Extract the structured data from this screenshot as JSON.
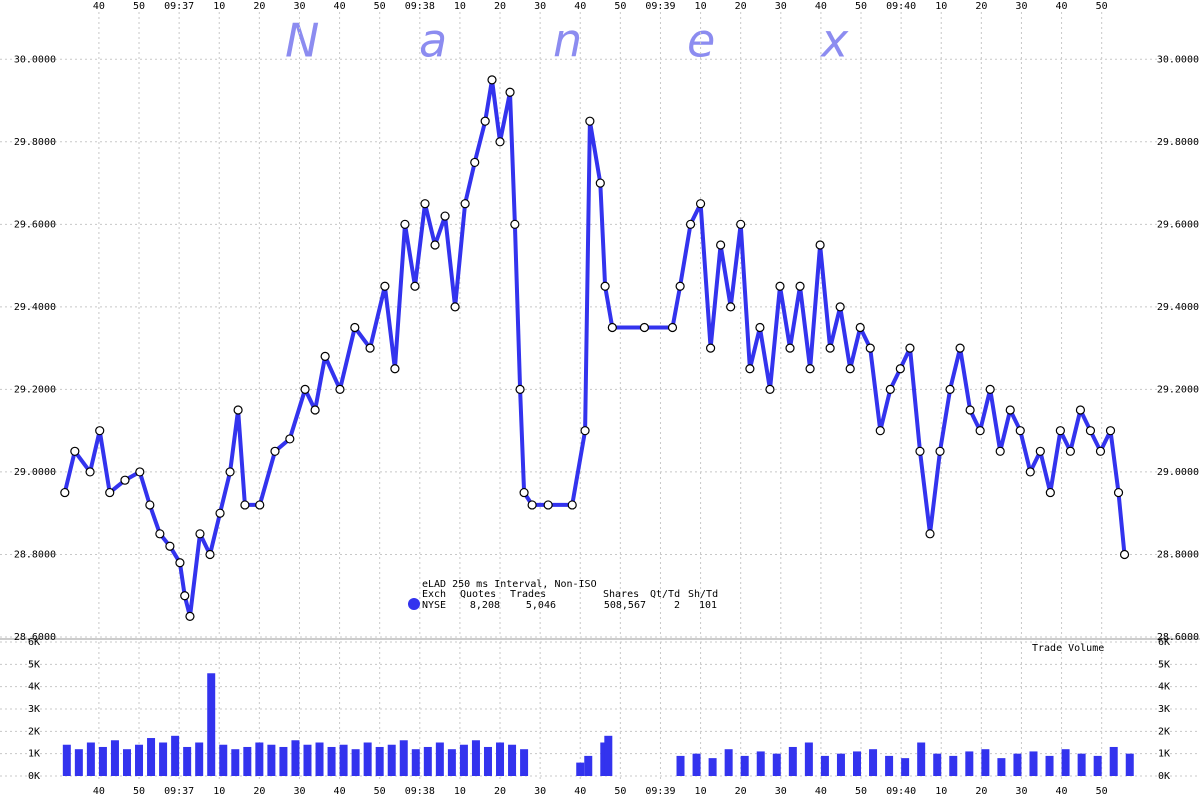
{
  "watermark": [
    "N",
    "a",
    "n",
    "e",
    "x"
  ],
  "chart_data": [
    {
      "type": "line",
      "legend_title": "eLAD 250 ms Interval, Non-ISO",
      "legend_columns": [
        "Exch",
        "Quotes",
        "Trades",
        "Shares",
        "Qt/Td",
        "Sh/Td"
      ],
      "legend_stats": [
        {
          "value": 8208,
          "label": "8,208"
        },
        {
          "value": 5046,
          "label": "5,046"
        },
        {
          "value": 508567,
          "label": "508,567"
        },
        2,
        101
      ],
      "x": [
        31.5,
        34.0,
        37.8,
        40.2,
        42.7,
        46.5,
        50.2,
        52.7,
        55.2,
        57.7,
        60.2,
        61.4,
        62.7,
        65.2,
        67.7,
        70.2,
        72.7,
        74.7,
        76.4,
        80.1,
        83.9,
        87.6,
        91.4,
        93.9,
        96.4,
        100.1,
        103.8,
        107.6,
        111.3,
        113.8,
        116.3,
        118.8,
        121.3,
        123.8,
        126.3,
        128.8,
        131.3,
        133.7,
        136.3,
        138.0,
        140.0,
        142.5,
        143.7,
        145.0,
        146.0,
        148.0,
        152.0,
        158.0,
        161.2,
        162.4,
        165.0,
        166.2,
        168.0,
        176.0,
        183.0,
        184.9,
        187.5,
        190.0,
        192.5,
        195.0,
        197.5,
        200.0,
        202.3,
        204.8,
        207.3,
        209.8,
        212.3,
        214.8,
        217.3,
        219.8,
        222.3,
        224.8,
        227.3,
        229.8,
        232.3,
        234.8,
        237.3,
        239.8,
        242.2,
        244.7,
        247.2,
        249.7,
        252.2,
        254.7,
        257.2,
        259.7,
        262.2,
        264.7,
        267.2,
        269.7,
        272.2,
        274.7,
        277.2,
        279.7,
        282.2,
        284.7,
        287.2,
        289.7,
        292.2,
        294.2,
        295.7
      ],
      "series": [
        {
          "name": "NYSE",
          "color": "#3333ee",
          "values": [
            28.95,
            29.05,
            29.0,
            29.1,
            28.95,
            28.98,
            29.0,
            28.92,
            28.85,
            28.82,
            28.78,
            28.7,
            28.65,
            28.85,
            28.8,
            28.9,
            29.0,
            29.15,
            28.92,
            28.92,
            29.05,
            29.08,
            29.2,
            29.15,
            29.28,
            29.2,
            29.35,
            29.3,
            29.45,
            29.25,
            29.6,
            29.45,
            29.65,
            29.55,
            29.62,
            29.4,
            29.65,
            29.75,
            29.85,
            29.95,
            29.8,
            29.92,
            29.6,
            29.2,
            28.95,
            28.92,
            28.92,
            28.92,
            29.1,
            29.85,
            29.7,
            29.45,
            29.35,
            29.35,
            29.35,
            29.45,
            29.6,
            29.65,
            29.3,
            29.55,
            29.4,
            29.6,
            29.25,
            29.35,
            29.2,
            29.45,
            29.3,
            29.45,
            29.25,
            29.55,
            29.3,
            29.4,
            29.25,
            29.35,
            29.3,
            29.1,
            29.2,
            29.25,
            29.3,
            29.05,
            28.85,
            29.05,
            29.2,
            29.3,
            29.15,
            29.1,
            29.2,
            29.05,
            29.15,
            29.1,
            29.0,
            29.05,
            28.95,
            29.1,
            29.05,
            29.15,
            29.1,
            29.05,
            29.1,
            28.95,
            28.8
          ]
        }
      ],
      "xlim": [
        30.3,
        300.8
      ],
      "xticks": [
        40,
        50,
        {
          "value": 60,
          "label": "09:37"
        },
        {
          "value": 70,
          "label": "10"
        },
        {
          "value": 80,
          "label": "20"
        },
        {
          "value": 90,
          "label": "30"
        },
        {
          "value": 100,
          "label": "40"
        },
        {
          "value": 110,
          "label": "50"
        },
        {
          "value": 120,
          "label": "09:38"
        },
        {
          "value": 130,
          "label": "10"
        },
        {
          "value": 140,
          "label": "20"
        },
        {
          "value": 150,
          "label": "30"
        },
        {
          "value": 160,
          "label": "40"
        },
        {
          "value": 170,
          "label": "50"
        },
        {
          "value": 180,
          "label": "09:39"
        },
        {
          "value": 190,
          "label": "10"
        },
        {
          "value": 200,
          "label": "20"
        },
        {
          "value": 210,
          "label": "30"
        },
        {
          "value": 220,
          "label": "40"
        },
        {
          "value": 230,
          "label": "50"
        },
        {
          "value": 240,
          "label": "09:40"
        },
        {
          "value": 250,
          "label": "10"
        },
        {
          "value": 260,
          "label": "20"
        },
        {
          "value": 270,
          "label": "30"
        },
        {
          "value": 280,
          "label": "40"
        },
        {
          "value": 290,
          "label": "50"
        }
      ],
      "ylim": [
        28.6,
        30.1
      ],
      "yticks": [
        {
          "value": 28.6,
          "label": "28.6000"
        },
        {
          "value": 28.8,
          "label": "28.8000"
        },
        {
          "value": 29.0,
          "label": "29.0000"
        },
        {
          "value": 29.2,
          "label": "29.2000"
        },
        {
          "value": 29.4,
          "label": "29.4000"
        },
        {
          "value": 29.6,
          "label": "29.6000"
        },
        {
          "value": 29.8,
          "label": "29.8000"
        },
        {
          "value": 30.0,
          "label": "30.0000"
        }
      ],
      "grid": true
    },
    {
      "type": "bar",
      "title": "Trade Volume",
      "color": "#3333ee",
      "x": [
        32,
        35,
        38,
        41,
        44,
        47,
        50,
        53,
        56,
        59,
        62,
        65,
        68,
        71,
        74,
        77,
        80,
        83,
        86,
        89,
        92,
        95,
        98,
        101,
        104,
        107,
        110,
        113,
        116,
        119,
        122,
        125,
        128,
        131,
        134,
        137,
        140,
        143,
        146,
        160,
        162,
        166,
        167,
        185,
        189,
        193,
        197,
        201,
        205,
        209,
        213,
        217,
        221,
        225,
        229,
        233,
        237,
        241,
        245,
        249,
        253,
        257,
        261,
        265,
        269,
        273,
        277,
        281,
        285,
        289,
        293,
        297
      ],
      "values": [
        1400,
        1200,
        1500,
        1300,
        1600,
        1200,
        1400,
        1700,
        1500,
        1800,
        1300,
        1500,
        4600,
        1400,
        1200,
        1300,
        1500,
        1400,
        1300,
        1600,
        1400,
        1500,
        1300,
        1400,
        1200,
        1500,
        1300,
        1400,
        1600,
        1200,
        1300,
        1500,
        1200,
        1400,
        1600,
        1300,
        1500,
        1400,
        1200,
        600,
        900,
        1500,
        1800,
        900,
        1000,
        800,
        1200,
        900,
        1100,
        1000,
        1300,
        1500,
        900,
        1000,
        1100,
        1200,
        900,
        800,
        1500,
        1000,
        900,
        1100,
        1200,
        800,
        1000,
        1100,
        900,
        1200,
        1000,
        900,
        1300,
        1000
      ],
      "xlim": [
        30.3,
        300.8
      ],
      "xticks": [
        40,
        50,
        {
          "value": 60,
          "label": "09:37"
        },
        {
          "value": 70,
          "label": "10"
        },
        {
          "value": 80,
          "label": "20"
        },
        {
          "value": 90,
          "label": "30"
        },
        {
          "value": 100,
          "label": "40"
        },
        {
          "value": 110,
          "label": "50"
        },
        {
          "value": 120,
          "label": "09:38"
        },
        {
          "value": 130,
          "label": "10"
        },
        {
          "value": 140,
          "label": "20"
        },
        {
          "value": 150,
          "label": "30"
        },
        {
          "value": 160,
          "label": "40"
        },
        {
          "value": 170,
          "label": "50"
        },
        {
          "value": 180,
          "label": "09:39"
        },
        {
          "value": 190,
          "label": "10"
        },
        {
          "value": 200,
          "label": "20"
        },
        {
          "value": 210,
          "label": "30"
        },
        {
          "value": 220,
          "label": "40"
        },
        {
          "value": 230,
          "label": "50"
        },
        {
          "value": 240,
          "label": "09:40"
        },
        {
          "value": 250,
          "label": "10"
        },
        {
          "value": 260,
          "label": "20"
        },
        {
          "value": 270,
          "label": "30"
        },
        {
          "value": 280,
          "label": "40"
        },
        {
          "value": 290,
          "label": "50"
        }
      ],
      "ylim": [
        0,
        6000
      ],
      "yticks": [
        {
          "value": 0,
          "label": "0K"
        },
        {
          "value": 1000,
          "label": "1K"
        },
        {
          "value": 2000,
          "label": "2K"
        },
        {
          "value": 3000,
          "label": "3K"
        },
        {
          "value": 4000,
          "label": "4K"
        },
        {
          "value": 5000,
          "label": "5K"
        },
        {
          "value": 6000,
          "label": "6K"
        }
      ],
      "grid": true
    }
  ]
}
